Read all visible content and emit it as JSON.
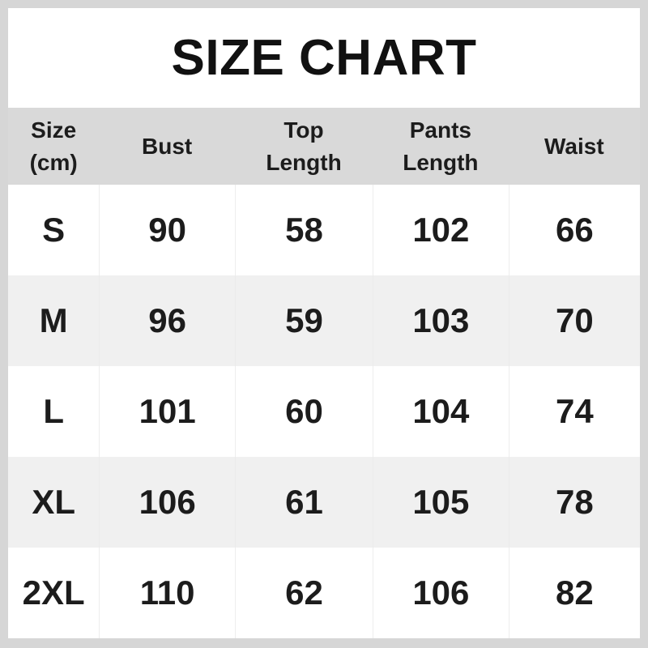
{
  "title": "SIZE CHART",
  "chart_data": {
    "type": "table",
    "title": "SIZE CHART",
    "columns": [
      "Size (cm)",
      "Bust",
      "Top Length",
      "Pants Length",
      "Waist"
    ],
    "rows": [
      [
        "S",
        "90",
        "58",
        "102",
        "66"
      ],
      [
        "M",
        "96",
        "59",
        "103",
        "70"
      ],
      [
        "L",
        "101",
        "60",
        "104",
        "74"
      ],
      [
        "XL",
        "106",
        "61",
        "105",
        "78"
      ],
      [
        "2XL",
        "110",
        "62",
        "106",
        "82"
      ]
    ]
  },
  "colors": {
    "frame": "#d6d6d6",
    "header_bg": "#d9d9d9",
    "row_plain_bg": "#ffffff",
    "row_alt_bg": "#f0f0f0",
    "text": "#1a1a1a"
  }
}
